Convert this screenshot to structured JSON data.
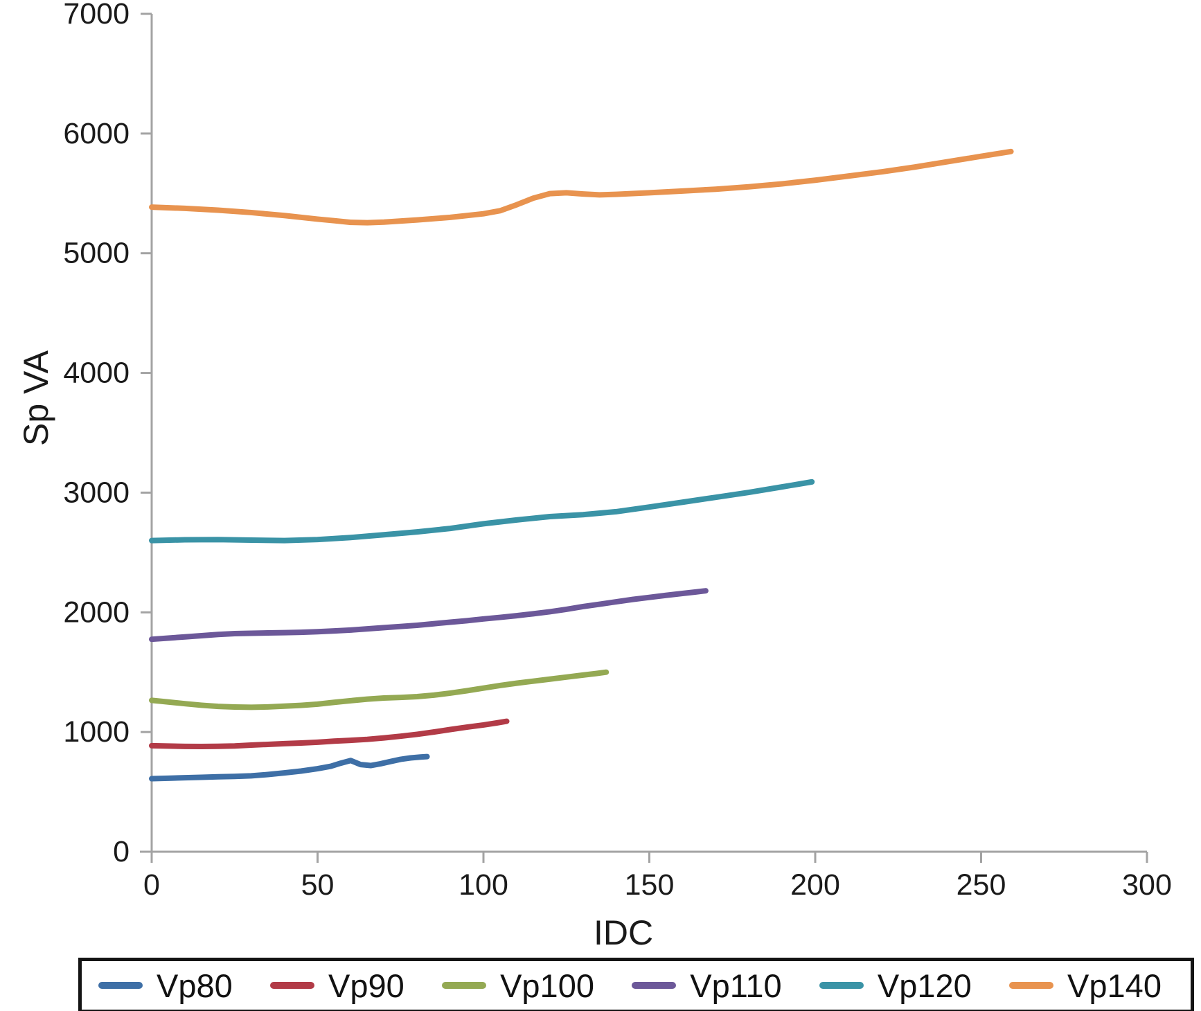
{
  "figure": {
    "background": "#ffffff"
  },
  "axis": {
    "line_color": "#a3a3a3",
    "tick_label_color": "#1a1a1a",
    "tick_label_font_px": 43
  },
  "legend": {
    "border_color": "#141414",
    "position": "bottom"
  },
  "chart_data": {
    "type": "line",
    "title": "",
    "xlabel": "IDC",
    "ylabel": "Sp VA",
    "xlim": [
      0,
      300
    ],
    "ylim": [
      0,
      7000
    ],
    "xticks": [
      "0",
      "50",
      "100",
      "150",
      "200",
      "250",
      "300"
    ],
    "yticks": [
      "0",
      "1000",
      "2000",
      "3000",
      "4000",
      "5000",
      "6000",
      "7000"
    ],
    "grid": false,
    "legend_position": "bottom-horizontal",
    "series": [
      {
        "name": "Vp80",
        "color": "#3e6fa6",
        "x": [
          0,
          5,
          10,
          15,
          20,
          25,
          30,
          35,
          40,
          45,
          50,
          54,
          57,
          60,
          63,
          66,
          69,
          72,
          75,
          78,
          81,
          83
        ],
        "y": [
          610,
          614,
          618,
          622,
          626,
          629,
          634,
          645,
          659,
          674,
          694,
          714,
          740,
          762,
          728,
          720,
          735,
          754,
          772,
          784,
          791,
          795
        ]
      },
      {
        "name": "Vp90",
        "color": "#b23b47",
        "x": [
          0,
          5,
          10,
          15,
          20,
          25,
          30,
          35,
          40,
          45,
          50,
          55,
          60,
          65,
          70,
          75,
          80,
          85,
          90,
          95,
          100,
          104,
          107
        ],
        "y": [
          886,
          883,
          880,
          879,
          881,
          884,
          891,
          897,
          903,
          908,
          915,
          924,
          931,
          939,
          951,
          965,
          981,
          1000,
          1021,
          1041,
          1059,
          1076,
          1090
        ]
      },
      {
        "name": "Vp100",
        "color": "#94a953",
        "x": [
          0,
          5,
          10,
          15,
          20,
          25,
          30,
          35,
          40,
          45,
          50,
          55,
          60,
          65,
          70,
          75,
          80,
          85,
          90,
          95,
          100,
          105,
          110,
          115,
          120,
          125,
          130,
          134,
          137
        ],
        "y": [
          1265,
          1251,
          1237,
          1224,
          1214,
          1209,
          1207,
          1210,
          1216,
          1223,
          1233,
          1248,
          1262,
          1275,
          1284,
          1289,
          1296,
          1308,
          1325,
          1345,
          1367,
          1389,
          1408,
          1425,
          1442,
          1459,
          1476,
          1489,
          1500
        ]
      },
      {
        "name": "Vp110",
        "color": "#6c5899",
        "x": [
          0,
          5,
          10,
          15,
          20,
          25,
          30,
          35,
          40,
          45,
          50,
          55,
          60,
          65,
          70,
          75,
          80,
          85,
          90,
          95,
          100,
          105,
          110,
          115,
          120,
          125,
          130,
          135,
          140,
          145,
          150,
          155,
          160,
          164,
          167
        ],
        "y": [
          1775,
          1785,
          1795,
          1805,
          1815,
          1822,
          1825,
          1828,
          1830,
          1833,
          1838,
          1845,
          1852,
          1862,
          1872,
          1882,
          1892,
          1905,
          1918,
          1930,
          1945,
          1958,
          1972,
          1988,
          2005,
          2025,
          2048,
          2068,
          2088,
          2108,
          2125,
          2142,
          2158,
          2170,
          2180
        ]
      },
      {
        "name": "Vp120",
        "color": "#3a93a6",
        "x": [
          0,
          10,
          20,
          30,
          40,
          50,
          60,
          70,
          80,
          90,
          100,
          110,
          120,
          130,
          140,
          150,
          160,
          170,
          180,
          190,
          199
        ],
        "y": [
          2600,
          2606,
          2608,
          2603,
          2600,
          2608,
          2625,
          2648,
          2672,
          2701,
          2740,
          2772,
          2800,
          2816,
          2841,
          2880,
          2920,
          2961,
          3002,
          3048,
          3090
        ]
      },
      {
        "name": "Vp140",
        "color": "#e8934f",
        "x": [
          0,
          10,
          20,
          30,
          40,
          50,
          55,
          60,
          65,
          70,
          80,
          90,
          100,
          105,
          110,
          115,
          120,
          125,
          130,
          135,
          140,
          150,
          160,
          170,
          180,
          190,
          200,
          210,
          220,
          230,
          240,
          250,
          259
        ],
        "y": [
          5385,
          5375,
          5360,
          5340,
          5315,
          5285,
          5272,
          5258,
          5255,
          5260,
          5278,
          5300,
          5330,
          5355,
          5405,
          5460,
          5498,
          5505,
          5495,
          5488,
          5492,
          5505,
          5520,
          5535,
          5555,
          5580,
          5610,
          5645,
          5680,
          5720,
          5765,
          5810,
          5850
        ]
      }
    ]
  }
}
